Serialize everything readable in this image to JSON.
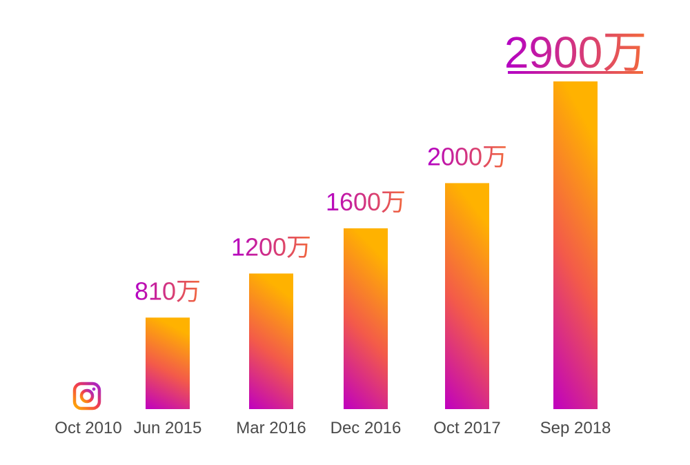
{
  "chart_data": {
    "type": "bar",
    "categories": [
      "Oct 2010",
      "Jun 2015",
      "Mar 2016",
      "Dec 2016",
      "Oct 2017",
      "Sep 2018"
    ],
    "values": [
      0,
      810,
      1200,
      1600,
      2000,
      2900
    ],
    "data_labels": [
      "",
      "810万",
      "1200万",
      "1600万",
      "2000万",
      "2900万"
    ],
    "highlight_index": 5,
    "first_category_marker": "instagram-logo",
    "colors": {
      "gradient_bottom": "#bf00c0",
      "gradient_mid": "#f35a4a",
      "gradient_top": "#ffb200",
      "label_start": "#b300c5",
      "label_end": "#f36a3a",
      "tick_text": "#4a4a4a"
    },
    "ylim": [
      0,
      2900
    ],
    "grid": false,
    "legend": "none"
  }
}
